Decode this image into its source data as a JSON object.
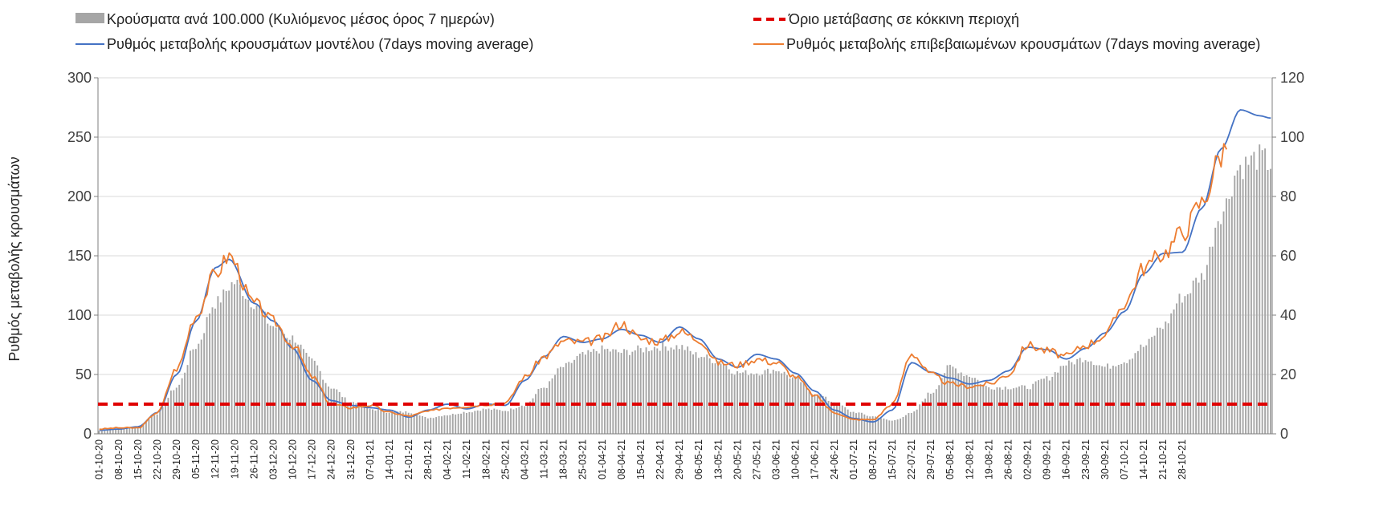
{
  "chart_data": {
    "type": "bar+line",
    "ylabel": "Ρυθμός μεταβολής κρουσμάτων",
    "ylim": [
      0,
      300
    ],
    "y_ticks": [
      "0",
      "50",
      "100",
      "150",
      "200",
      "250",
      "300"
    ],
    "y2lim": [
      0,
      120
    ],
    "y2_ticks": [
      "0",
      "20",
      "40",
      "60",
      "80",
      "100",
      "120"
    ],
    "grid": true,
    "legend_position": "top",
    "x_tick_labels": [
      "01-10-20",
      "08-10-20",
      "15-10-20",
      "22-10-20",
      "29-10-20",
      "05-11-20",
      "12-11-20",
      "19-11-20",
      "26-11-20",
      "03-12-20",
      "10-12-20",
      "17-12-20",
      "24-12-20",
      "31-12-20",
      "07-01-21",
      "14-01-21",
      "21-01-21",
      "28-01-21",
      "04-02-21",
      "11-02-21",
      "18-02-21",
      "25-02-21",
      "04-03-21",
      "11-03-21",
      "18-03-21",
      "25-03-21",
      "01-04-21",
      "08-04-21",
      "15-04-21",
      "22-04-21",
      "29-04-21",
      "06-05-21",
      "13-05-21",
      "20-05-21",
      "27-05-21",
      "03-06-21",
      "10-06-21",
      "17-06-21",
      "24-06-21",
      "01-07-21",
      "08-07-21",
      "15-07-21",
      "22-07-21",
      "29-07-21",
      "05-08-21",
      "12-08-21",
      "19-08-21",
      "26-08-21",
      "02-09-21",
      "09-09-21",
      "16-09-21",
      "23-09-21",
      "30-09-21",
      "07-10-21",
      "14-10-21",
      "21-10-21",
      "28-10-21"
    ],
    "series": [
      {
        "name": "Κρούσματα ανά 100.000 (Κυλιόμενος μέσος όρος 7 ημερών)",
        "type": "bar",
        "axis": "right",
        "color": "#a6a6a6",
        "keyframes": [
          [
            0,
            1
          ],
          [
            7,
            1.5
          ],
          [
            14,
            2.5
          ],
          [
            21,
            7
          ],
          [
            28,
            16
          ],
          [
            35,
            30
          ],
          [
            42,
            45
          ],
          [
            49,
            52
          ],
          [
            56,
            45
          ],
          [
            63,
            37
          ],
          [
            70,
            33
          ],
          [
            77,
            25
          ],
          [
            84,
            16
          ],
          [
            91,
            11
          ],
          [
            98,
            8.5
          ],
          [
            105,
            7.5
          ],
          [
            112,
            7.5
          ],
          [
            119,
            5.5
          ],
          [
            126,
            6.5
          ],
          [
            133,
            7.5
          ],
          [
            140,
            8.5
          ],
          [
            147,
            8
          ],
          [
            154,
            10
          ],
          [
            161,
            16
          ],
          [
            168,
            23
          ],
          [
            175,
            27
          ],
          [
            182,
            29
          ],
          [
            189,
            28
          ],
          [
            196,
            29
          ],
          [
            203,
            30
          ],
          [
            210,
            30
          ],
          [
            217,
            27
          ],
          [
            224,
            25
          ],
          [
            231,
            21
          ],
          [
            238,
            21
          ],
          [
            245,
            22
          ],
          [
            252,
            19
          ],
          [
            259,
            14
          ],
          [
            266,
            11
          ],
          [
            273,
            7.5
          ],
          [
            280,
            6
          ],
          [
            287,
            4.5
          ],
          [
            294,
            7
          ],
          [
            301,
            14
          ],
          [
            308,
            23
          ],
          [
            315,
            20
          ],
          [
            322,
            16
          ],
          [
            329,
            16
          ],
          [
            336,
            16
          ],
          [
            343,
            19
          ],
          [
            350,
            24
          ],
          [
            357,
            26
          ],
          [
            364,
            23
          ],
          [
            371,
            25
          ],
          [
            378,
            30
          ],
          [
            385,
            37
          ],
          [
            392,
            47
          ],
          [
            399,
            54
          ],
          [
            406,
            76
          ],
          [
            413,
            92
          ],
          [
            420,
            95
          ],
          [
            424,
            93
          ]
        ]
      },
      {
        "name": "Ρυθμός μεταβολής κρουσμάτων μοντέλου (7days moving average)",
        "type": "line",
        "axis": "left",
        "color": "#4472c4",
        "keyframes": [
          [
            0,
            3
          ],
          [
            7,
            4
          ],
          [
            14,
            6
          ],
          [
            21,
            18
          ],
          [
            28,
            50
          ],
          [
            35,
            95
          ],
          [
            42,
            140
          ],
          [
            47,
            147
          ],
          [
            56,
            110
          ],
          [
            63,
            95
          ],
          [
            70,
            72
          ],
          [
            77,
            45
          ],
          [
            84,
            28
          ],
          [
            91,
            24
          ],
          [
            98,
            22
          ],
          [
            105,
            20
          ],
          [
            112,
            14
          ],
          [
            119,
            20
          ],
          [
            126,
            25
          ],
          [
            133,
            21
          ],
          [
            140,
            25
          ],
          [
            147,
            24
          ],
          [
            154,
            45
          ],
          [
            161,
            65
          ],
          [
            168,
            82
          ],
          [
            175,
            77
          ],
          [
            182,
            80
          ],
          [
            189,
            88
          ],
          [
            196,
            83
          ],
          [
            203,
            77
          ],
          [
            210,
            90
          ],
          [
            217,
            80
          ],
          [
            224,
            63
          ],
          [
            231,
            56
          ],
          [
            238,
            67
          ],
          [
            245,
            63
          ],
          [
            252,
            51
          ],
          [
            259,
            36
          ],
          [
            266,
            20
          ],
          [
            273,
            13
          ],
          [
            280,
            10
          ],
          [
            287,
            20
          ],
          [
            294,
            60
          ],
          [
            301,
            52
          ],
          [
            308,
            47
          ],
          [
            315,
            42
          ],
          [
            322,
            45
          ],
          [
            329,
            53
          ],
          [
            336,
            73
          ],
          [
            343,
            71
          ],
          [
            350,
            63
          ],
          [
            357,
            72
          ],
          [
            364,
            85
          ],
          [
            371,
            103
          ],
          [
            378,
            135
          ],
          [
            385,
            152
          ],
          [
            392,
            153
          ],
          [
            399,
            190
          ],
          [
            406,
            240
          ],
          [
            413,
            273
          ],
          [
            420,
            268
          ],
          [
            424,
            266
          ]
        ]
      },
      {
        "name": "Ρυθμός μεταβολής επιβεβαιωμένων κρουσμάτων (7days moving average)",
        "type": "line",
        "axis": "left",
        "color": "#ed7d31",
        "keyframes": [
          [
            0,
            4
          ],
          [
            7,
            5
          ],
          [
            14,
            5
          ],
          [
            21,
            18
          ],
          [
            28,
            55
          ],
          [
            35,
            100
          ],
          [
            42,
            135
          ],
          [
            47,
            150
          ],
          [
            56,
            110
          ],
          [
            63,
            95
          ],
          [
            70,
            75
          ],
          [
            77,
            48
          ],
          [
            84,
            25
          ],
          [
            91,
            22
          ],
          [
            98,
            24
          ],
          [
            105,
            18
          ],
          [
            112,
            15
          ],
          [
            119,
            19
          ],
          [
            126,
            22
          ],
          [
            133,
            23
          ],
          [
            140,
            25
          ],
          [
            147,
            26
          ],
          [
            154,
            48
          ],
          [
            161,
            65
          ],
          [
            168,
            78
          ],
          [
            175,
            77
          ],
          [
            182,
            80
          ],
          [
            189,
            93
          ],
          [
            196,
            80
          ],
          [
            203,
            78
          ],
          [
            210,
            86
          ],
          [
            217,
            80
          ],
          [
            224,
            60
          ],
          [
            231,
            58
          ],
          [
            238,
            63
          ],
          [
            245,
            60
          ],
          [
            252,
            48
          ],
          [
            259,
            32
          ],
          [
            266,
            18
          ],
          [
            273,
            12
          ],
          [
            280,
            12
          ],
          [
            287,
            25
          ],
          [
            294,
            68
          ],
          [
            301,
            50
          ],
          [
            308,
            42
          ],
          [
            315,
            40
          ],
          [
            322,
            42
          ],
          [
            329,
            50
          ],
          [
            336,
            75
          ],
          [
            343,
            70
          ],
          [
            350,
            65
          ],
          [
            357,
            75
          ],
          [
            364,
            83
          ],
          [
            371,
            110
          ],
          [
            378,
            140
          ],
          [
            385,
            152
          ],
          [
            392,
            170
          ],
          [
            399,
            195
          ],
          [
            406,
            235
          ],
          [
            408,
            245
          ]
        ]
      },
      {
        "name": "Όριο μετάβασης σε κόκκινη περιοχή",
        "type": "line",
        "axis": "left",
        "style": "dashed",
        "color": "#e00000",
        "values": [
          25,
          25
        ]
      }
    ]
  }
}
